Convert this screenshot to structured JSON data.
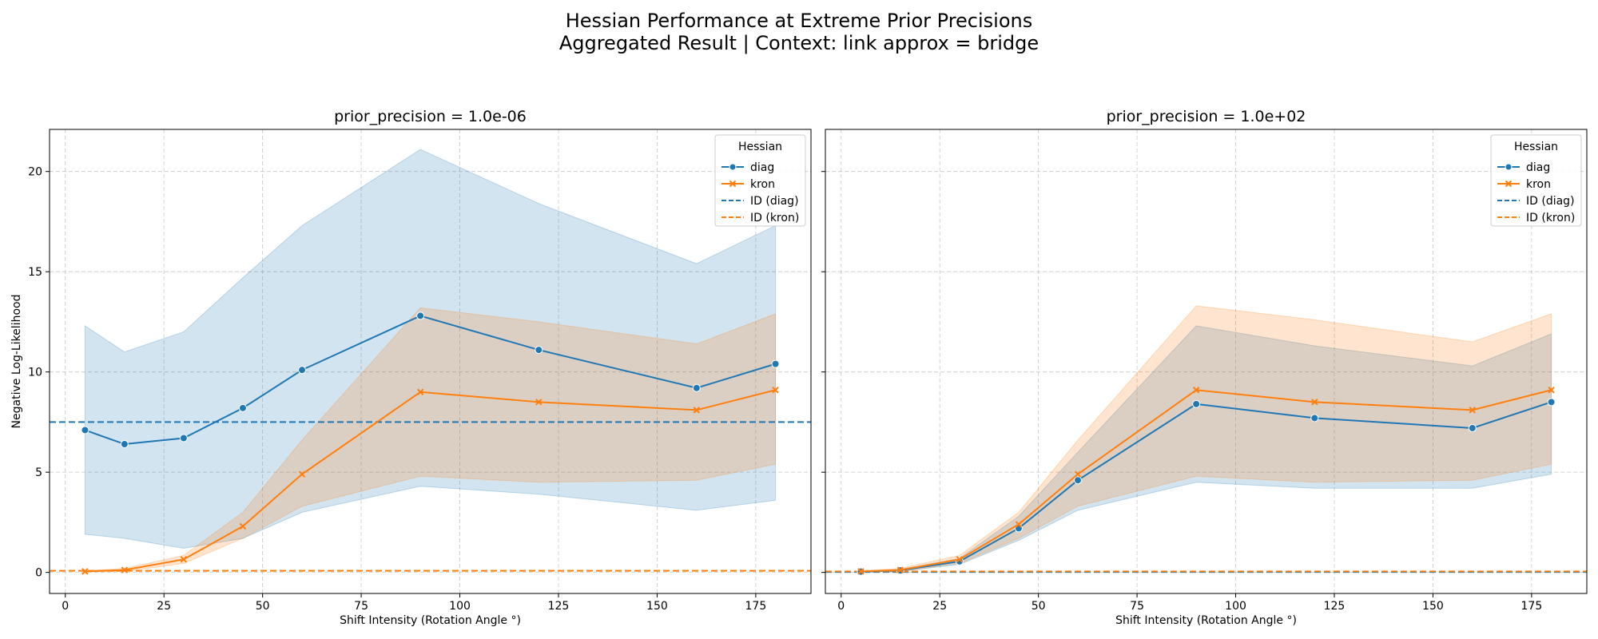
{
  "figure": {
    "title_line1": "Hessian Performance at Extreme Prior Precisions",
    "title_line2": "Aggregated Result | Context: link approx = bridge"
  },
  "colors": {
    "diag": "#1f77b4",
    "kron": "#ff7f0e"
  },
  "chart_data": [
    {
      "type": "line",
      "title": "prior_precision = 1.0e-06",
      "xlabel": "Shift Intensity (Rotation Angle °)",
      "ylabel": "Negative Log-Likelihood",
      "xlim": [
        -4,
        189
      ],
      "ylim": [
        -1.05,
        22.1
      ],
      "xticks": [
        0,
        25,
        50,
        75,
        100,
        125,
        150,
        175
      ],
      "yticks": [
        0,
        5,
        10,
        15,
        20
      ],
      "grid": true,
      "legend": {
        "title": "Hessian",
        "placement": "top-right",
        "entries": [
          "diag",
          "kron",
          "ID (diag)",
          "ID (kron)"
        ]
      },
      "x": [
        5,
        15,
        30,
        45,
        60,
        90,
        120,
        160,
        180
      ],
      "series": [
        {
          "name": "diag",
          "marker": "circle",
          "values": [
            7.1,
            6.4,
            6.7,
            8.2,
            10.1,
            12.8,
            11.1,
            9.2,
            10.4
          ],
          "ci_low": [
            1.9,
            1.7,
            1.2,
            1.7,
            3.0,
            4.3,
            3.9,
            3.1,
            3.6
          ],
          "ci_high": [
            12.3,
            11.0,
            12.0,
            14.7,
            17.3,
            21.1,
            18.4,
            15.4,
            17.3
          ]
        },
        {
          "name": "kron",
          "marker": "x",
          "values": [
            0.05,
            0.12,
            0.65,
            2.3,
            4.9,
            9.0,
            8.5,
            8.1,
            9.1
          ],
          "ci_low": [
            0.02,
            0.05,
            0.45,
            1.7,
            3.3,
            4.8,
            4.5,
            4.6,
            5.4
          ],
          "ci_high": [
            0.08,
            0.2,
            0.85,
            3.0,
            6.6,
            13.2,
            12.5,
            11.4,
            12.9
          ]
        }
      ],
      "reference_lines": [
        {
          "name": "ID (diag)",
          "y": 7.5
        },
        {
          "name": "ID (kron)",
          "y": 0.08
        }
      ]
    },
    {
      "type": "line",
      "title": "prior_precision = 1.0e+02",
      "xlabel": "Shift Intensity (Rotation Angle °)",
      "ylabel": "",
      "xlim": [
        -4,
        189
      ],
      "ylim": [
        -1.05,
        22.1
      ],
      "xticks": [
        0,
        25,
        50,
        75,
        100,
        125,
        150,
        175
      ],
      "yticks": [
        0,
        5,
        10,
        15,
        20
      ],
      "grid": true,
      "legend": {
        "title": "Hessian",
        "placement": "top-right",
        "entries": [
          "diag",
          "kron",
          "ID (diag)",
          "ID (kron)"
        ]
      },
      "x": [
        5,
        15,
        30,
        45,
        60,
        90,
        120,
        160,
        180
      ],
      "series": [
        {
          "name": "diag",
          "marker": "circle",
          "values": [
            0.04,
            0.1,
            0.55,
            2.2,
            4.6,
            8.4,
            7.7,
            7.2,
            8.5
          ],
          "ci_low": [
            0.02,
            0.05,
            0.4,
            1.6,
            3.1,
            4.5,
            4.2,
            4.2,
            4.9
          ],
          "ci_high": [
            0.07,
            0.15,
            0.7,
            2.8,
            6.0,
            12.3,
            11.3,
            10.3,
            11.9
          ]
        },
        {
          "name": "kron",
          "marker": "x",
          "values": [
            0.05,
            0.12,
            0.65,
            2.4,
            4.9,
            9.1,
            8.5,
            8.1,
            9.1
          ],
          "ci_low": [
            0.02,
            0.05,
            0.45,
            1.7,
            3.3,
            4.8,
            4.5,
            4.6,
            5.4
          ],
          "ci_high": [
            0.08,
            0.2,
            0.85,
            3.0,
            6.6,
            13.3,
            12.6,
            11.5,
            12.9
          ]
        }
      ],
      "reference_lines": [
        {
          "name": "ID (diag)",
          "y": 0.02
        },
        {
          "name": "ID (kron)",
          "y": 0.05
        }
      ]
    }
  ]
}
